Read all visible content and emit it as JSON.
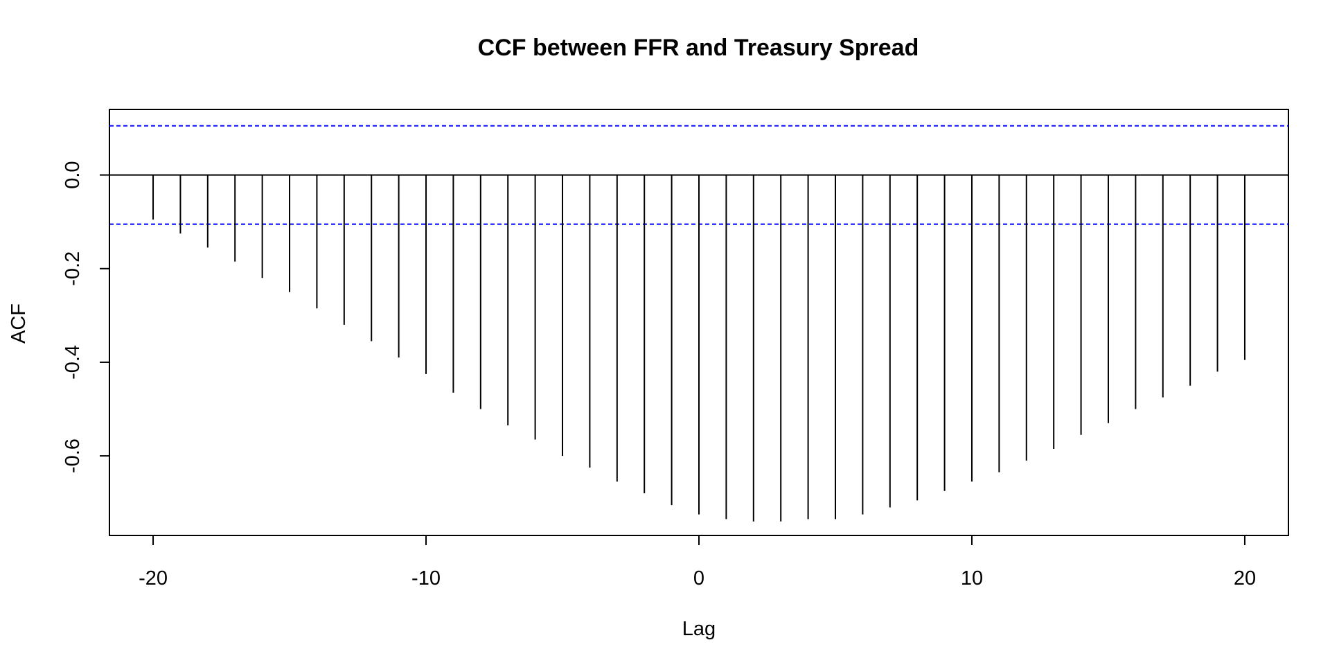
{
  "chart_data": {
    "type": "bar",
    "title": "CCF between FFR and Treasury Spread",
    "xlabel": "Lag",
    "ylabel": "ACF",
    "x": [
      -20,
      -19,
      -18,
      -17,
      -16,
      -15,
      -14,
      -13,
      -12,
      -11,
      -10,
      -9,
      -8,
      -7,
      -6,
      -5,
      -4,
      -3,
      -2,
      -1,
      0,
      1,
      2,
      3,
      4,
      5,
      6,
      7,
      8,
      9,
      10,
      11,
      12,
      13,
      14,
      15,
      16,
      17,
      18,
      19,
      20
    ],
    "values": [
      -0.095,
      -0.125,
      -0.155,
      -0.185,
      -0.22,
      -0.25,
      -0.285,
      -0.32,
      -0.355,
      -0.39,
      -0.425,
      -0.465,
      -0.5,
      -0.535,
      -0.565,
      -0.6,
      -0.625,
      -0.655,
      -0.68,
      -0.705,
      -0.725,
      -0.735,
      -0.74,
      -0.74,
      -0.735,
      -0.735,
      -0.725,
      -0.71,
      -0.695,
      -0.675,
      -0.655,
      -0.635,
      -0.61,
      -0.585,
      -0.555,
      -0.53,
      -0.5,
      -0.475,
      -0.45,
      -0.42,
      -0.395
    ],
    "confidence_bound": 0.105,
    "xlim": [
      -21.6,
      21.6
    ],
    "ylim": [
      -0.77,
      0.14
    ],
    "x_ticks": [
      -20,
      -10,
      0,
      10,
      20
    ],
    "y_ticks": [
      -0.6,
      -0.4,
      -0.2,
      0.0
    ],
    "x_tick_labels": [
      "-20",
      "-10",
      "0",
      "10",
      "20"
    ],
    "y_tick_labels": [
      "-0.6",
      "-0.4",
      "-0.2",
      "0.0"
    ],
    "grid": false,
    "colors": {
      "bars": "#000000",
      "confidence_lines": "#0000ff",
      "zero_line": "#000000",
      "frame": "#000000"
    }
  }
}
